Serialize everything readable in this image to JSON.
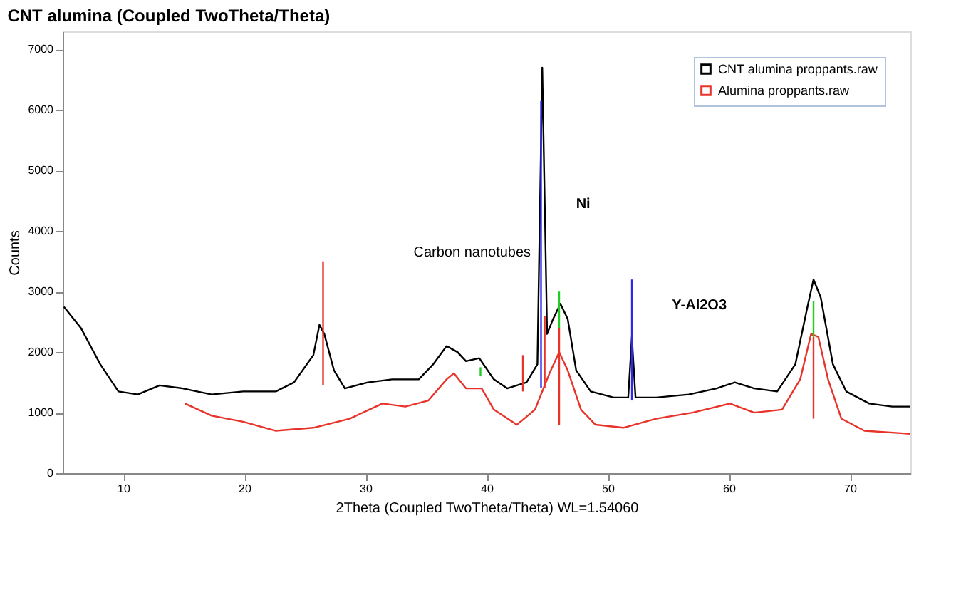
{
  "chart_data": {
    "type": "line",
    "title": "CNT alumina (Coupled TwoTheta/Theta)",
    "xlabel": "2Theta (Coupled TwoTheta/Theta) WL=1.54060",
    "ylabel": "Counts",
    "xlim": [
      5,
      75
    ],
    "ylim": [
      0,
      7300
    ],
    "xticks": [
      10,
      20,
      30,
      40,
      50,
      60,
      70
    ],
    "yticks": [
      0,
      1000,
      2000,
      3000,
      4000,
      5000,
      6000,
      7000
    ],
    "grid": false,
    "legend": "top right",
    "series": [
      {
        "name": "CNT alumina proppants.raw",
        "color": "#000000",
        "x": [
          5.1,
          6.5,
          8.1,
          9.6,
          11.2,
          13.0,
          14.9,
          17.3,
          19.9,
          22.6,
          24.1,
          25.7,
          26.2,
          26.6,
          27.4,
          28.3,
          30.2,
          32.2,
          34.4,
          35.6,
          36.7,
          37.6,
          38.3,
          39.4,
          40.6,
          41.7,
          43.3,
          44.2,
          44.6,
          45.0,
          45.5,
          46.1,
          46.7,
          47.4,
          48.6,
          50.5,
          51.7,
          52.0,
          52.3,
          54.0,
          56.7,
          59.0,
          60.5,
          62.1,
          64.0,
          65.5,
          66.5,
          67.0,
          67.6,
          68.6,
          69.7,
          71.6,
          73.5,
          75.0
        ],
        "values": [
          2750,
          2400,
          1800,
          1350,
          1300,
          1450,
          1400,
          1300,
          1350,
          1350,
          1500,
          1950,
          2450,
          2300,
          1700,
          1400,
          1500,
          1550,
          1550,
          1800,
          2100,
          2000,
          1850,
          1900,
          1550,
          1400,
          1500,
          1800,
          6700,
          2300,
          2550,
          2800,
          2550,
          1700,
          1350,
          1250,
          1250,
          2250,
          1250,
          1250,
          1300,
          1400,
          1500,
          1400,
          1350,
          1800,
          2750,
          3200,
          2900,
          1800,
          1350,
          1150,
          1100,
          1100
        ]
      },
      {
        "name": "Alumina proppants.raw",
        "color": "#e8332a",
        "x": [
          15.1,
          17.3,
          19.9,
          22.6,
          25.7,
          28.7,
          31.4,
          33.3,
          35.2,
          36.7,
          37.3,
          38.3,
          39.6,
          40.6,
          42.5,
          44.0,
          45.2,
          46.0,
          46.7,
          47.8,
          49.0,
          51.3,
          54.0,
          57.0,
          60.1,
          62.1,
          64.4,
          65.9,
          66.8,
          67.4,
          68.2,
          69.3,
          71.2,
          75.0
        ],
        "values": [
          1150,
          950,
          850,
          700,
          750,
          900,
          1150,
          1100,
          1200,
          1550,
          1650,
          1400,
          1400,
          1050,
          800,
          1050,
          1650,
          2000,
          1700,
          1050,
          800,
          750,
          900,
          1000,
          1150,
          1000,
          1050,
          1550,
          2300,
          2250,
          1550,
          900,
          700,
          650
        ]
      },
      {
        "color": "#e8332a",
        "x": [
          26.5,
          26.5
        ],
        "values": [
          1450,
          3500
        ]
      },
      {
        "color": "#e8332a",
        "x": [
          43,
          43
        ],
        "values": [
          1350,
          1950
        ]
      },
      {
        "color": "#e8332a",
        "x": [
          44.8,
          44.8
        ],
        "values": [
          1400,
          2600
        ]
      },
      {
        "color": "#e8332a",
        "x": [
          46,
          46
        ],
        "values": [
          800,
          2400
        ]
      },
      {
        "color": "#e8332a",
        "x": [
          67,
          67
        ],
        "values": [
          900,
          2250
        ]
      },
      {
        "color": "#2a2aee",
        "x": [
          44.5,
          44.5
        ],
        "values": [
          1400,
          6150
        ]
      },
      {
        "color": "#2a2aee",
        "x": [
          52,
          52
        ],
        "values": [
          1200,
          3200
        ]
      },
      {
        "color": "#22cc22",
        "x": [
          39.5,
          39.5
        ],
        "values": [
          1600,
          1750
        ]
      },
      {
        "color": "#22cc22",
        "x": [
          46,
          46
        ],
        "values": [
          2400,
          3000
        ]
      },
      {
        "color": "#22cc22",
        "x": [
          67,
          67
        ],
        "values": [
          2250,
          2850
        ]
      }
    ],
    "annotations": [
      "Carbon nanotubes",
      "Ni",
      "Y-Al2O3"
    ]
  }
}
